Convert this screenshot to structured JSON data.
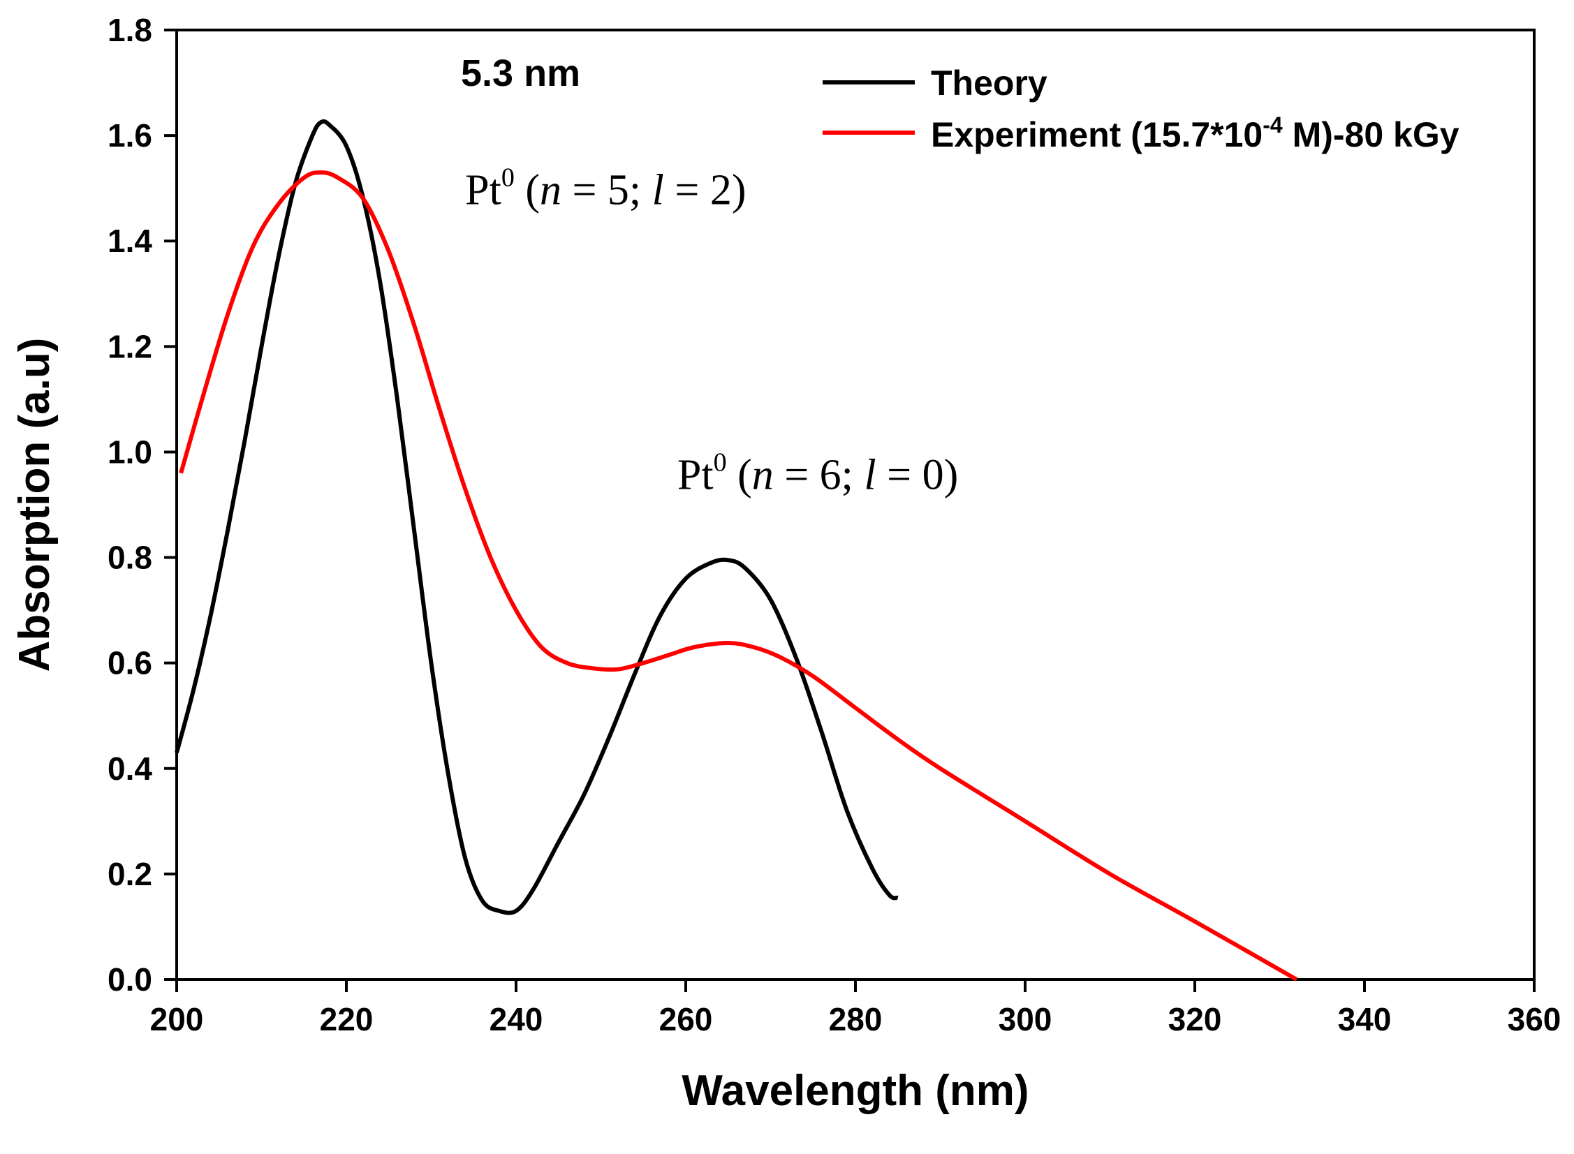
{
  "chart_data": {
    "type": "line",
    "title": "5.3 nm",
    "xlabel": "Wavelength (nm)",
    "ylabel": "Absorption (a.u)",
    "xlim": [
      200,
      360
    ],
    "ylim": [
      0.0,
      1.8
    ],
    "xticks": [
      200,
      220,
      240,
      260,
      280,
      300,
      320,
      340,
      360
    ],
    "yticks": [
      0.0,
      0.2,
      0.4,
      0.6,
      0.8,
      1.0,
      1.2,
      1.4,
      1.6,
      1.8
    ],
    "ytick_labels": [
      "0.0",
      "0.2",
      "0.4",
      "0.6",
      "0.8",
      "1.0",
      "1.2",
      "1.4",
      "1.6",
      "1.8"
    ],
    "grid": false,
    "legend_position": "top-right",
    "series": [
      {
        "name": "Theory",
        "color": "#000000",
        "points": [
          [
            200,
            0.43
          ],
          [
            202,
            0.55
          ],
          [
            204,
            0.69
          ],
          [
            206,
            0.85
          ],
          [
            208,
            1.02
          ],
          [
            210,
            1.2
          ],
          [
            212,
            1.37
          ],
          [
            214,
            1.51
          ],
          [
            216,
            1.6
          ],
          [
            217,
            1.625
          ],
          [
            218,
            1.62
          ],
          [
            220,
            1.58
          ],
          [
            222,
            1.48
          ],
          [
            224,
            1.32
          ],
          [
            226,
            1.1
          ],
          [
            228,
            0.85
          ],
          [
            230,
            0.6
          ],
          [
            232,
            0.39
          ],
          [
            234,
            0.23
          ],
          [
            236,
            0.15
          ],
          [
            238,
            0.13
          ],
          [
            240,
            0.13
          ],
          [
            242,
            0.17
          ],
          [
            245,
            0.26
          ],
          [
            248,
            0.35
          ],
          [
            251,
            0.46
          ],
          [
            254,
            0.58
          ],
          [
            257,
            0.69
          ],
          [
            260,
            0.76
          ],
          [
            263,
            0.79
          ],
          [
            265,
            0.795
          ],
          [
            267,
            0.78
          ],
          [
            270,
            0.72
          ],
          [
            273,
            0.61
          ],
          [
            276,
            0.47
          ],
          [
            279,
            0.32
          ],
          [
            282,
            0.21
          ],
          [
            284,
            0.16
          ],
          [
            285,
            0.155
          ]
        ]
      },
      {
        "name": "Experiment (15.7*10^-4 M)-80 kGy",
        "color": "#ff0000",
        "points": [
          [
            200.5,
            0.96
          ],
          [
            203,
            1.1
          ],
          [
            206,
            1.26
          ],
          [
            209,
            1.39
          ],
          [
            212,
            1.47
          ],
          [
            215,
            1.52
          ],
          [
            217,
            1.53
          ],
          [
            219,
            1.52
          ],
          [
            222,
            1.48
          ],
          [
            225,
            1.38
          ],
          [
            228,
            1.24
          ],
          [
            231,
            1.08
          ],
          [
            234,
            0.93
          ],
          [
            237,
            0.8
          ],
          [
            240,
            0.7
          ],
          [
            243,
            0.63
          ],
          [
            246,
            0.6
          ],
          [
            249,
            0.59
          ],
          [
            252,
            0.588
          ],
          [
            255,
            0.6
          ],
          [
            258,
            0.615
          ],
          [
            261,
            0.63
          ],
          [
            265,
            0.638
          ],
          [
            268,
            0.63
          ],
          [
            271,
            0.612
          ],
          [
            275,
            0.575
          ],
          [
            280,
            0.515
          ],
          [
            285,
            0.455
          ],
          [
            290,
            0.4
          ],
          [
            300,
            0.3
          ],
          [
            310,
            0.2
          ],
          [
            320,
            0.11
          ],
          [
            332,
            0.0
          ]
        ]
      }
    ],
    "legend": [
      {
        "label": "Theory",
        "color": "#000000"
      },
      {
        "label_main": "Experiment (15.7*10",
        "label_sup": "-4",
        "label_end": " M)-80 kGy",
        "color": "#ff0000"
      }
    ],
    "annotations": [
      {
        "base": "Pt",
        "sup": "0",
        "open": " (",
        "n_var": "n",
        "n_eq": " = 5; ",
        "l_var": "l",
        "l_eq": " = 2)",
        "x": 234,
        "y": 1.47
      },
      {
        "base": "Pt",
        "sup": "0",
        "open": " (",
        "n_var": "n",
        "n_eq": " = 6; ",
        "l_var": "l",
        "l_eq": " = 0)",
        "x": 259,
        "y": 0.93
      }
    ]
  }
}
